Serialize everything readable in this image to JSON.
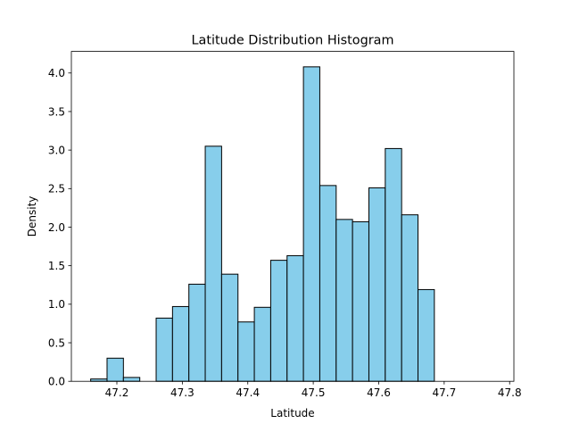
{
  "chart_data": {
    "type": "bar",
    "title": "Latitude Distribution Histogram",
    "xlabel": "Latitude",
    "ylabel": "Density",
    "xlim": [
      47.1305,
      47.8065
    ],
    "ylim": [
      0,
      4.28
    ],
    "xticks": [
      "47.2",
      "47.3",
      "47.4",
      "47.5",
      "47.6",
      "47.7",
      "47.8"
    ],
    "yticks": [
      "0.0",
      "0.5",
      "1.0",
      "1.5",
      "2.0",
      "2.5",
      "3.0",
      "3.5",
      "4.0"
    ],
    "grid": false,
    "bins": [
      {
        "x0": 47.16,
        "x1": 47.185,
        "value": 0.03
      },
      {
        "x0": 47.185,
        "x1": 47.21,
        "value": 0.3
      },
      {
        "x0": 47.21,
        "x1": 47.235,
        "value": 0.05
      },
      {
        "x0": 47.235,
        "x1": 47.26,
        "value": 0.0
      },
      {
        "x0": 47.26,
        "x1": 47.285,
        "value": 0.82
      },
      {
        "x0": 47.285,
        "x1": 47.31,
        "value": 0.97
      },
      {
        "x0": 47.31,
        "x1": 47.335,
        "value": 1.26
      },
      {
        "x0": 47.335,
        "x1": 47.36,
        "value": 3.05
      },
      {
        "x0": 47.36,
        "x1": 47.385,
        "value": 1.39
      },
      {
        "x0": 47.385,
        "x1": 47.41,
        "value": 0.77
      },
      {
        "x0": 47.41,
        "x1": 47.435,
        "value": 0.96
      },
      {
        "x0": 47.435,
        "x1": 47.46,
        "value": 1.57
      },
      {
        "x0": 47.46,
        "x1": 47.485,
        "value": 1.63
      },
      {
        "x0": 47.485,
        "x1": 47.51,
        "value": 4.08
      },
      {
        "x0": 47.51,
        "x1": 47.535,
        "value": 2.54
      },
      {
        "x0": 47.535,
        "x1": 47.56,
        "value": 2.1
      },
      {
        "x0": 47.56,
        "x1": 47.585,
        "value": 2.07
      },
      {
        "x0": 47.585,
        "x1": 47.61,
        "value": 2.51
      },
      {
        "x0": 47.61,
        "x1": 47.635,
        "value": 3.02
      },
      {
        "x0": 47.635,
        "x1": 47.66,
        "value": 2.16
      },
      {
        "x0": 47.66,
        "x1": 47.685,
        "value": 1.19
      }
    ],
    "colors": {
      "bar_fill": "#87ceeb",
      "bar_edge": "#000000",
      "axis": "#000000"
    }
  }
}
